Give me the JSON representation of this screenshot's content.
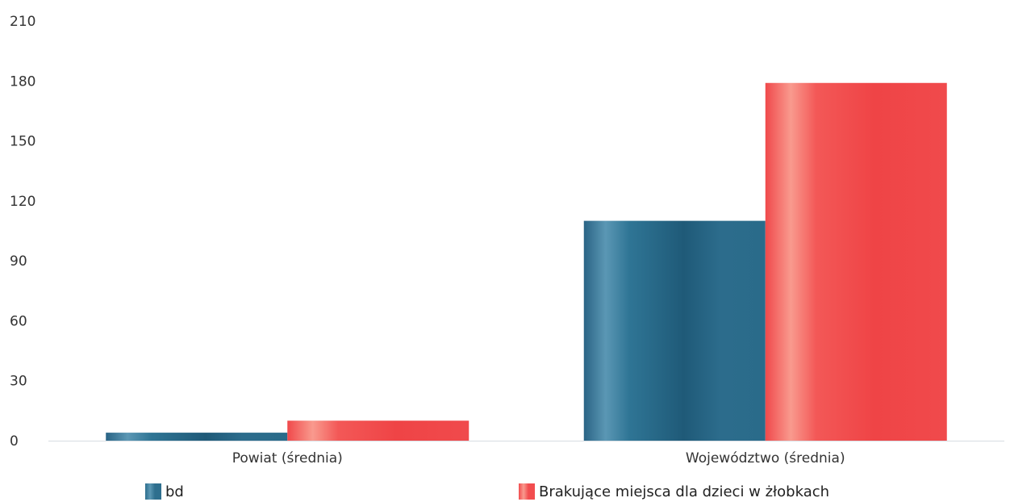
{
  "chart_data": {
    "type": "bar",
    "categories": [
      "Powiat (średnia)",
      "Województwo (średnia)"
    ],
    "series": [
      {
        "name": "bd",
        "values": [
          4,
          110
        ],
        "color": "#2e6f8e"
      },
      {
        "name": "Brakujące miejsca dla dzieci w żłobkach",
        "values": [
          10,
          179
        ],
        "color": "#f24d4f"
      }
    ],
    "ylim": [
      0,
      210
    ],
    "yticks": [
      0,
      30,
      60,
      90,
      120,
      150,
      180,
      210
    ],
    "xlabel": "",
    "ylabel": "",
    "title": "",
    "grid": false,
    "legend_position": "bottom"
  }
}
